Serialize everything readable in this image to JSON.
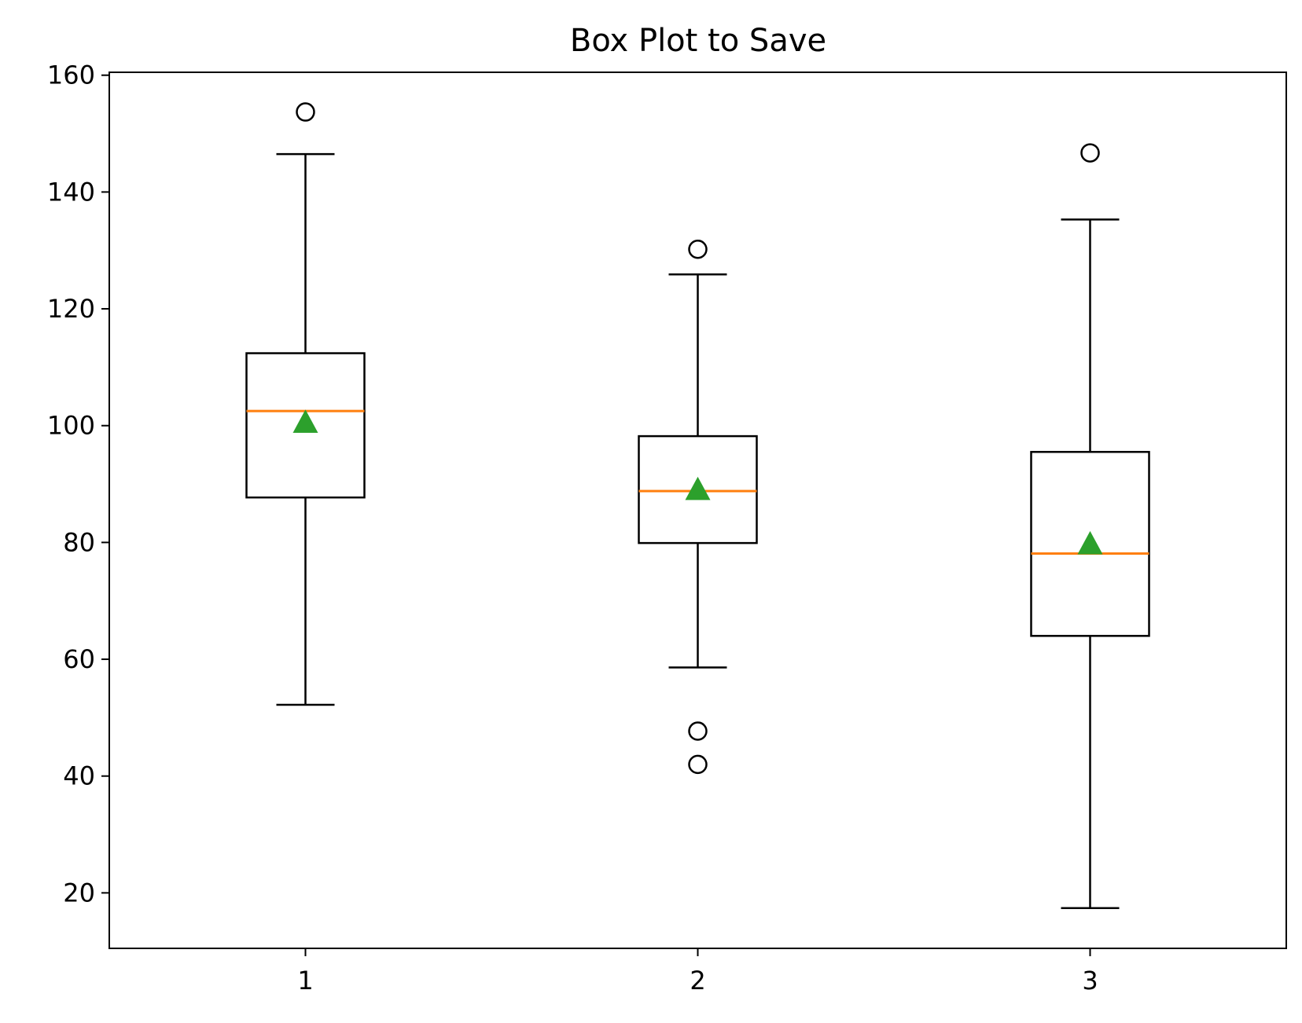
{
  "chart_data": {
    "type": "box",
    "title": "Box Plot to Save",
    "xlabel": "",
    "ylabel": "",
    "categories": [
      "1",
      "2",
      "3"
    ],
    "ylim": [
      10.5,
      160.5
    ],
    "yticks": [
      20,
      40,
      60,
      80,
      100,
      120,
      140,
      160
    ],
    "grid": false,
    "boxes": [
      {
        "category": "1",
        "whisker_low": 52.2,
        "q1": 87.7,
        "median": 102.5,
        "q3": 112.4,
        "whisker_high": 146.5,
        "mean": 100.6,
        "outliers": [
          153.7
        ]
      },
      {
        "category": "2",
        "whisker_low": 58.6,
        "q1": 79.9,
        "median": 88.8,
        "q3": 98.2,
        "whisker_high": 125.9,
        "mean": 89.1,
        "outliers": [
          130.2,
          47.7,
          42.0
        ]
      },
      {
        "category": "3",
        "whisker_low": 17.4,
        "q1": 64.0,
        "median": 78.1,
        "q3": 95.5,
        "whisker_high": 135.3,
        "mean": 79.8,
        "outliers": [
          146.7
        ]
      }
    ],
    "colors": {
      "box": "#000000",
      "median": "#ff7f0e",
      "mean": "#2ca02c",
      "outlier": "#000000"
    }
  }
}
